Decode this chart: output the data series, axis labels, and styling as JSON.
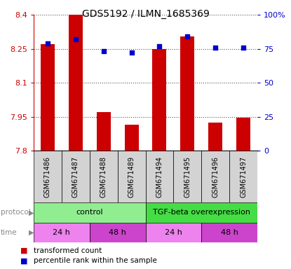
{
  "title": "GDS5192 / ILMN_1685369",
  "samples": [
    "GSM671486",
    "GSM671487",
    "GSM671488",
    "GSM671489",
    "GSM671494",
    "GSM671495",
    "GSM671496",
    "GSM671497"
  ],
  "transformed_counts": [
    8.27,
    8.4,
    7.97,
    7.915,
    8.25,
    8.305,
    7.925,
    7.945
  ],
  "percentile_ranks": [
    79,
    82,
    73,
    72,
    77,
    84,
    76,
    76
  ],
  "ylim_left": [
    7.8,
    8.4
  ],
  "ylim_right": [
    0,
    100
  ],
  "yticks_left": [
    7.8,
    7.95,
    8.1,
    8.25,
    8.4
  ],
  "yticks_right": [
    0,
    25,
    50,
    75,
    100
  ],
  "ytick_labels_left": [
    "7.8",
    "7.95",
    "8.1",
    "8.25",
    "8.4"
  ],
  "ytick_labels_right": [
    "0",
    "25",
    "50",
    "75",
    "100%"
  ],
  "bar_color": "#cc0000",
  "dot_color": "#0000cc",
  "bar_width": 0.5,
  "dot_size": 25,
  "protocol_groups": [
    {
      "label": "control",
      "start": 0,
      "end": 4,
      "color": "#90ee90"
    },
    {
      "label": "TGF-beta overexpression",
      "start": 4,
      "end": 8,
      "color": "#44dd44"
    }
  ],
  "time_groups": [
    {
      "label": "24 h",
      "start": 0,
      "end": 2,
      "color": "#ee82ee"
    },
    {
      "label": "48 h",
      "start": 2,
      "end": 4,
      "color": "#cc44cc"
    },
    {
      "label": "24 h",
      "start": 4,
      "end": 6,
      "color": "#ee82ee"
    },
    {
      "label": "48 h",
      "start": 6,
      "end": 8,
      "color": "#cc44cc"
    }
  ],
  "legend_items": [
    {
      "label": "transformed count",
      "color": "#cc0000"
    },
    {
      "label": "percentile rank within the sample",
      "color": "#0000cc"
    }
  ],
  "grid_color": "#555555",
  "left_axis_color": "#cc0000",
  "right_axis_color": "#0000cc",
  "sample_bg_color": "#d3d3d3",
  "label_row_color": "#888888"
}
